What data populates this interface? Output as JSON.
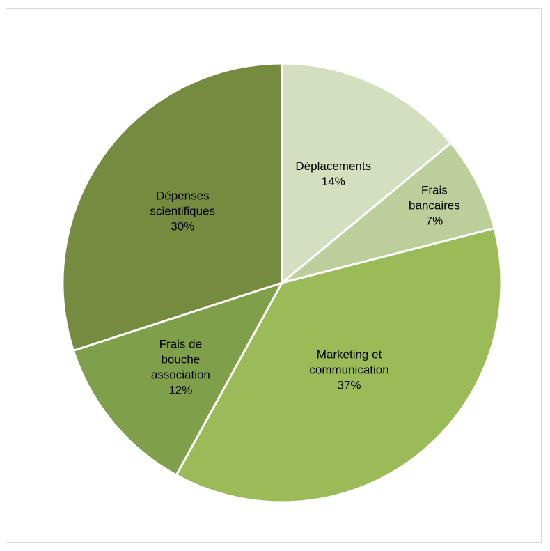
{
  "chart_data": {
    "type": "pie",
    "title": "",
    "slices": [
      {
        "label_lines": [
          "Déplacements"
        ],
        "percent_label": "14%",
        "value": 14,
        "color": "#d3dfbf"
      },
      {
        "label_lines": [
          "Frais",
          "bancaires"
        ],
        "percent_label": "7%",
        "value": 7,
        "color": "#bccf9a"
      },
      {
        "label_lines": [
          "Marketing et",
          "communication"
        ],
        "percent_label": "37%",
        "value": 37,
        "color": "#9bbb59"
      },
      {
        "label_lines": [
          "Frais de",
          "bouche",
          "association"
        ],
        "percent_label": "12%",
        "value": 12,
        "color": "#7f9f4a"
      },
      {
        "label_lines": [
          "Dépenses",
          "scientifiques"
        ],
        "percent_label": "30%",
        "value": 30,
        "color": "#758c40"
      }
    ],
    "legend": "none",
    "slice_border_color": "#ffffff"
  }
}
